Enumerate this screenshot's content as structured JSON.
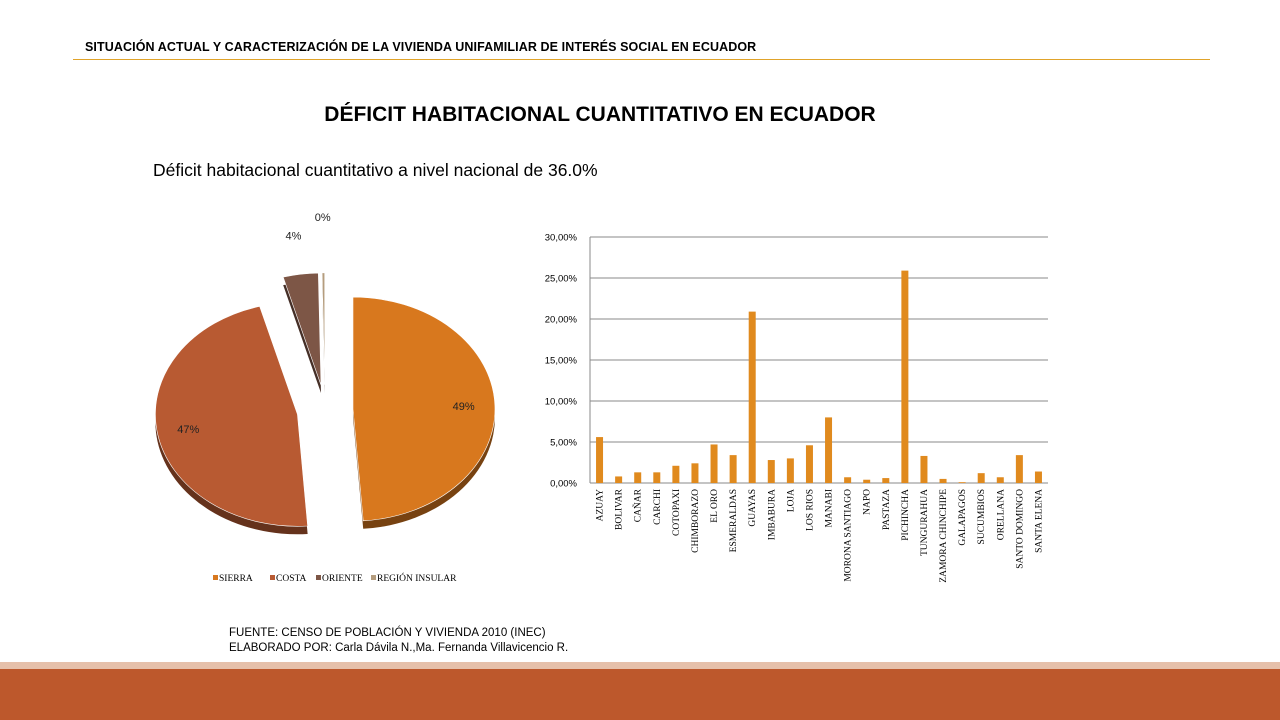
{
  "header": {
    "title": "SITUACIÓN ACTUAL Y CARACTERIZACIÓN DE LA VIVIENDA UNIFAMILIAR DE INTERÉS SOCIAL EN ECUADOR"
  },
  "slide": {
    "title": "DÉFICIT HABITACIONAL CUANTITATIVO  EN ECUADOR",
    "subtitle": "Déficit habitacional cuantitativo a nivel nacional de 36.0%"
  },
  "source": {
    "line1": "FUENTE: CENSO DE POBLACIÓN Y VIVIENDA 2010 (INEC)",
    "line2": "ELABORADO POR: Carla Dávila N.,Ma. Fernanda Villavicencio R."
  },
  "colors": {
    "accent": "#e0a32a",
    "footer": "#bd582c",
    "sierra": "#d8781e",
    "costa": "#b85a32",
    "oriente": "#7d5646",
    "insular": "#b59d7e",
    "bar": "#e08a1e"
  },
  "chart_data": [
    {
      "type": "pie",
      "categories": [
        "SIERRA",
        "COSTA",
        "ORIENTE",
        "REGIÓN INSULAR"
      ],
      "values": [
        49,
        47,
        4,
        0.3
      ],
      "data_labels": [
        "49%",
        "47%",
        "4%",
        "0%"
      ],
      "legend": "bottom",
      "exploded": true
    },
    {
      "type": "bar",
      "categories": [
        "AZUAY",
        "BOLIVAR",
        "CAÑAR",
        "CARCHI",
        "COTOPAXI",
        "CHIMBORAZO",
        "EL ORO",
        "ESMERALDAS",
        "GUAYAS",
        "IMBABURA",
        "LOJA",
        "LOS RIOS",
        "MANABI",
        "MORONA SANTIAGO",
        "NAPO",
        "PASTAZA",
        "PICHINCHA",
        "TUNGURAHUA",
        "ZAMORA CHINCHIPE",
        "GALAPAGOS",
        "SUCUMBIOS",
        "ORELLANA",
        "SANTO DOMINGO",
        "SANTA ELENA"
      ],
      "values": [
        5.6,
        0.8,
        1.3,
        1.3,
        2.1,
        2.4,
        4.7,
        3.4,
        20.9,
        2.8,
        3.0,
        4.6,
        8.0,
        0.7,
        0.4,
        0.6,
        25.9,
        3.3,
        0.5,
        0.1,
        1.2,
        0.7,
        3.4,
        1.4
      ],
      "ylim": [
        0,
        30
      ],
      "yticks": [
        "0,00%",
        "5,00%",
        "10,00%",
        "15,00%",
        "20,00%",
        "25,00%",
        "30,00%"
      ],
      "grid": true
    }
  ]
}
